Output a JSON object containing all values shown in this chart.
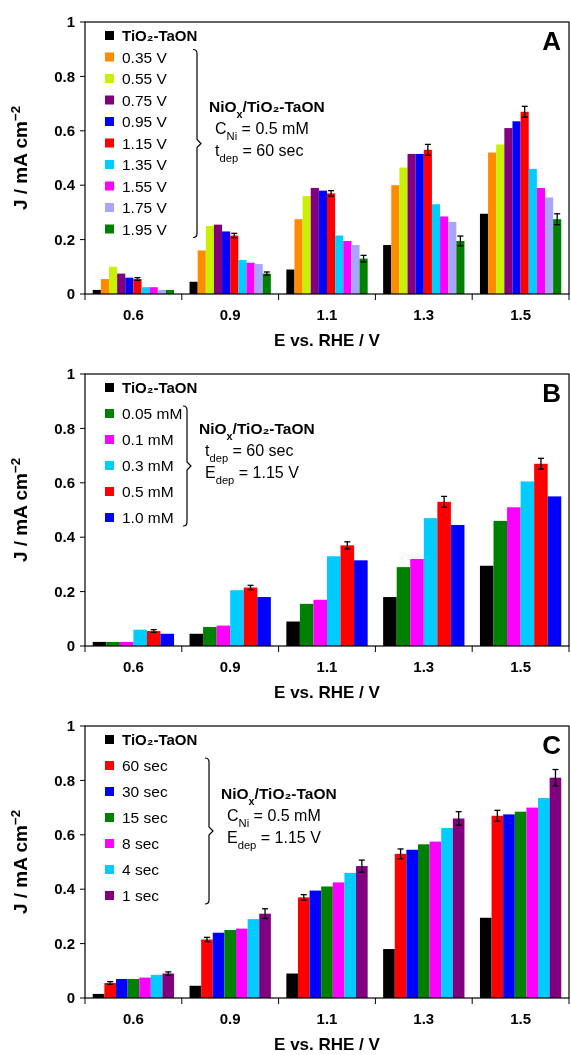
{
  "chart_data": [
    {
      "type": "bar",
      "xlabel": "E vs. RHE / V",
      "ylabel": "J / mA cm$^{−2}$",
      "categories": [
        "0.6",
        "0.9",
        "1.1",
        "1.3",
        "1.5"
      ],
      "ylim": [
        0,
        1
      ],
      "yticks": [
        0,
        0.2,
        0.4,
        0.6,
        0.8,
        1
      ],
      "grid": false,
      "legend": "top left",
      "annotations": [
        "A",
        "NiO$_{x}$/TiO₂-TaON",
        "C$_{Ni}$ = 0.5 mM",
        "t$_{dep}$ = 60 sec"
      ],
      "series": [
        {
          "name": "TiO₂-TaON",
          "color": "#000000",
          "values": [
            0.015,
            0.045,
            0.09,
            0.18,
            0.295
          ]
        },
        {
          "name": "0.35 V",
          "color": "#ff8c00",
          "values": [
            0.055,
            0.16,
            0.275,
            0.4,
            0.52
          ]
        },
        {
          "name": "0.55 V",
          "color": "#c8f000",
          "values": [
            0.1,
            0.25,
            0.36,
            0.465,
            0.55
          ]
        },
        {
          "name": "0.75 V",
          "color": "#800080",
          "values": [
            0.075,
            0.255,
            0.39,
            0.515,
            0.61
          ]
        },
        {
          "name": "0.95 V",
          "color": "#0000ff",
          "values": [
            0.06,
            0.23,
            0.38,
            0.515,
            0.635
          ]
        },
        {
          "name": "1.15 V",
          "color": "#ff0000",
          "values": [
            0.055,
            0.215,
            0.37,
            0.53,
            0.67
          ],
          "errors": [
            0.005,
            0.008,
            0.01,
            0.02,
            0.02
          ]
        },
        {
          "name": "1.35 V",
          "color": "#00ccff",
          "values": [
            0.025,
            0.125,
            0.215,
            0.33,
            0.46
          ]
        },
        {
          "name": "1.55 V",
          "color": "#ff00ff",
          "values": [
            0.025,
            0.115,
            0.195,
            0.285,
            0.39
          ]
        },
        {
          "name": "1.75 V",
          "color": "#a6a6ff",
          "values": [
            0.015,
            0.11,
            0.18,
            0.265,
            0.355
          ]
        },
        {
          "name": "1.95 V",
          "color": "#008000",
          "values": [
            0.015,
            0.075,
            0.13,
            0.195,
            0.275
          ],
          "errors": [
            null,
            0.006,
            0.012,
            0.018,
            0.02
          ]
        }
      ]
    },
    {
      "type": "bar",
      "xlabel": "E vs. RHE / V",
      "ylabel": "J / mA cm$^{−2}$",
      "categories": [
        "0.6",
        "0.9",
        "1.1",
        "1.3",
        "1.5"
      ],
      "ylim": [
        0,
        1
      ],
      "yticks": [
        0,
        0.2,
        0.4,
        0.6,
        0.8,
        1
      ],
      "grid": false,
      "legend": "top left",
      "annotations": [
        "B",
        "NiO$_{x}$/TiO₂-TaON",
        "t$_{dep}$ = 60 sec",
        "E$_{dep}$ = 1.15 V"
      ],
      "series": [
        {
          "name": "TiO₂-TaON",
          "color": "#000000",
          "values": [
            0.015,
            0.045,
            0.09,
            0.18,
            0.295
          ]
        },
        {
          "name": "0.05 mM",
          "color": "#008000",
          "values": [
            0.015,
            0.07,
            0.155,
            0.29,
            0.46
          ]
        },
        {
          "name": "0.1 mM",
          "color": "#ff00ff",
          "values": [
            0.015,
            0.075,
            0.17,
            0.32,
            0.51
          ]
        },
        {
          "name": "0.3 mM",
          "color": "#00ccff",
          "values": [
            0.06,
            0.205,
            0.33,
            0.47,
            0.605
          ]
        },
        {
          "name": "0.5 mM",
          "color": "#ff0000",
          "values": [
            0.055,
            0.215,
            0.37,
            0.53,
            0.67
          ],
          "errors": [
            0.005,
            0.008,
            0.013,
            0.02,
            0.02
          ]
        },
        {
          "name": "1.0 mM",
          "color": "#0000ff",
          "values": [
            0.045,
            0.18,
            0.315,
            0.445,
            0.55
          ]
        }
      ]
    },
    {
      "type": "bar",
      "xlabel": "E vs. RHE  / V",
      "ylabel": "J / mA cm$^{−2}$",
      "categories": [
        "0.6",
        "0.9",
        "1.1",
        "1.3",
        "1.5"
      ],
      "ylim": [
        0,
        1
      ],
      "yticks": [
        0,
        0.2,
        0.4,
        0.6,
        0.8,
        1
      ],
      "grid": false,
      "legend": "top left",
      "annotations": [
        "C",
        "NiO$_{x}$/TiO₂-TaON",
        "C$_{Ni}$ = 0.5 mM",
        "E$_{dep}$ = 1.15 V"
      ],
      "series": [
        {
          "name": "TiO₂-TaON",
          "color": "#000000",
          "values": [
            0.015,
            0.045,
            0.09,
            0.18,
            0.295
          ]
        },
        {
          "name": "60 sec",
          "color": "#ff0000",
          "values": [
            0.055,
            0.215,
            0.37,
            0.53,
            0.67
          ],
          "errors": [
            0.005,
            0.008,
            0.01,
            0.018,
            0.02
          ]
        },
        {
          "name": "30 sec",
          "color": "#0000ff",
          "values": [
            0.07,
            0.24,
            0.395,
            0.545,
            0.675
          ]
        },
        {
          "name": "15 sec",
          "color": "#008000",
          "values": [
            0.07,
            0.25,
            0.41,
            0.565,
            0.685
          ]
        },
        {
          "name": "8 sec",
          "color": "#ff00ff",
          "values": [
            0.075,
            0.255,
            0.425,
            0.575,
            0.7
          ]
        },
        {
          "name": "4 sec",
          "color": "#00ccff",
          "values": [
            0.085,
            0.29,
            0.46,
            0.625,
            0.735
          ]
        },
        {
          "name": "1 sec",
          "color": "#800080",
          "values": [
            0.09,
            0.31,
            0.485,
            0.66,
            0.81
          ],
          "errors": [
            0.006,
            0.018,
            0.022,
            0.025,
            0.03
          ]
        }
      ]
    }
  ]
}
